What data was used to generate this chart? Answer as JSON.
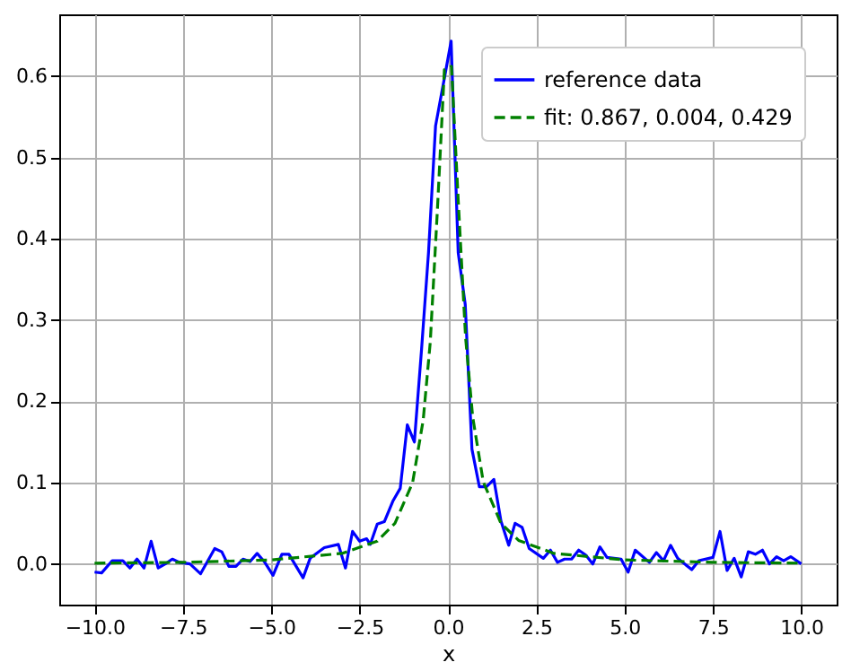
{
  "chart_data": {
    "type": "line",
    "xlabel": "x",
    "xlim": [
      -11,
      11
    ],
    "ylim": [
      -0.05,
      0.676
    ],
    "xticks": [
      {
        "value": -10,
        "label": "−10.0"
      },
      {
        "value": -7.5,
        "label": "−7.5"
      },
      {
        "value": -5,
        "label": "−5.0"
      },
      {
        "value": -2.5,
        "label": "−2.5"
      },
      {
        "value": 0,
        "label": "0.0"
      },
      {
        "value": 2.5,
        "label": "2.5"
      },
      {
        "value": 5,
        "label": "5.0"
      },
      {
        "value": 7.5,
        "label": "7.5"
      },
      {
        "value": 10,
        "label": "10.0"
      }
    ],
    "yticks": [
      {
        "value": 0,
        "label": "0.0"
      },
      0.1,
      0.2,
      0.3,
      0.4,
      0.5,
      0.6
    ],
    "grid": true,
    "legend": "top right",
    "marker": "none",
    "series": [
      {
        "name": "reference data",
        "color": "#0000ff",
        "line_style": "solid",
        "x": [
          -10,
          -9.8,
          -9.5,
          -9.2,
          -9.0,
          -8.8,
          -8.6,
          -8.4,
          -8.2,
          -8.0,
          -7.8,
          -7.6,
          -7.3,
          -7.0,
          -6.6,
          -6.4,
          -6.2,
          -6.0,
          -5.8,
          -5.6,
          -5.4,
          -5.2,
          -4.95,
          -4.7,
          -4.5,
          -4.1,
          -3.9,
          -3.5,
          -3.1,
          -2.9,
          -2.7,
          -2.5,
          -2.3,
          -2.2,
          -2.0,
          -1.8,
          -1.55,
          -1.35,
          -1.15,
          -0.95,
          -0.75,
          -0.55,
          -0.35,
          -0.09,
          0.09,
          0.29,
          0.49,
          0.68,
          0.89,
          1.09,
          1.3,
          1.5,
          1.72,
          1.9,
          2.1,
          2.3,
          2.7,
          2.9,
          3.1,
          3.3,
          3.5,
          3.7,
          3.9,
          4.1,
          4.3,
          4.5,
          4.9,
          5.1,
          5.3,
          5.7,
          5.9,
          6.1,
          6.3,
          6.5,
          6.9,
          7.1,
          7.5,
          7.7,
          7.9,
          8.1,
          8.3,
          8.5,
          8.7,
          8.9,
          9.1,
          9.3,
          9.5,
          9.7,
          10
        ],
        "values": [
          -0.01,
          -0.011,
          0.004,
          0.004,
          -0.005,
          0.006,
          -0.005,
          0.028,
          -0.005,
          0,
          0.006,
          0.002,
          0,
          -0.012,
          0.019,
          0.015,
          -0.003,
          -0.003,
          0.006,
          0.003,
          0.013,
          0.003,
          -0.014,
          0.012,
          0.012,
          -0.017,
          0.007,
          0.02,
          0.024,
          -0.005,
          0.04,
          0.028,
          0.031,
          0.024,
          0.049,
          0.052,
          0.078,
          0.093,
          0.171,
          0.15,
          0.262,
          0.383,
          0.539,
          0.6,
          0.643,
          0.383,
          0.319,
          0.141,
          0.095,
          0.095,
          0.104,
          0.053,
          0.023,
          0.05,
          0.045,
          0.019,
          0.007,
          0.017,
          0.002,
          0.006,
          0.006,
          0.017,
          0.011,
          0,
          0.021,
          0.008,
          0.006,
          -0.01,
          0.017,
          0.002,
          0.014,
          0.004,
          0.023,
          0.007,
          -0.007,
          0.004,
          0.008,
          0.04,
          -0.008,
          0.007,
          -0.016,
          0.015,
          0.012,
          0.017,
          0,
          0.009,
          0.004,
          0.009,
          0
        ]
      },
      {
        "name": "fit: 0.867, 0.004, 0.429",
        "color": "#008000",
        "line_style": "dashed",
        "x": [
          -10,
          -7.5,
          -5,
          -3,
          -2,
          -1.5,
          -1,
          -0.7,
          -0.5,
          -0.3,
          -0.1,
          0.1,
          0.3,
          0.5,
          0.7,
          1,
          1.5,
          2,
          3,
          5,
          7.5,
          10
        ],
        "values": [
          0.001,
          0.002,
          0.005,
          0.013,
          0.028,
          0.05,
          0.1,
          0.177,
          0.273,
          0.434,
          0.608,
          0.612,
          0.44,
          0.278,
          0.181,
          0.101,
          0.05,
          0.029,
          0.013,
          0.005,
          0.002,
          0.001
        ]
      }
    ]
  }
}
